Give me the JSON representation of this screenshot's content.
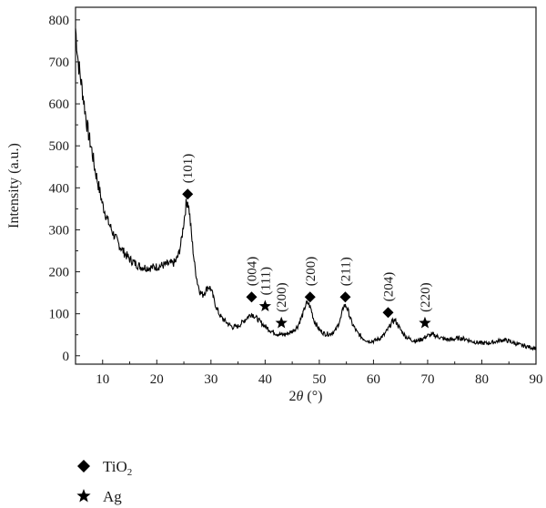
{
  "chart_data": {
    "type": "line",
    "xlabel": "2θ (°)",
    "ylabel": "Intensity (a.u.)",
    "xlim": [
      5,
      90
    ],
    "ylim": [
      -20,
      830
    ],
    "x_ticks": [
      "10",
      "20",
      "30",
      "40",
      "50",
      "60",
      "70",
      "80",
      "90"
    ],
    "y_ticks": [
      "0",
      "100",
      "200",
      "300",
      "400",
      "500",
      "600",
      "700",
      "800"
    ],
    "grid": false,
    "series": [
      {
        "color": "#000000",
        "x": [
          5,
          5.5,
          6,
          6.5,
          7,
          7.5,
          8,
          8.5,
          9,
          9.5,
          10,
          11,
          12,
          13,
          14,
          15,
          16,
          17,
          18,
          19,
          20,
          21,
          22,
          23,
          23.5,
          24,
          24.5,
          25,
          25.4,
          25.7,
          26,
          26.5,
          27,
          27.5,
          28,
          28.5,
          29,
          29.5,
          30,
          30.5,
          31,
          31.5,
          32,
          33,
          34,
          35,
          36,
          37,
          37.5,
          38,
          39,
          40,
          41,
          42,
          43,
          44,
          45,
          46,
          47,
          47.5,
          48,
          48.5,
          49,
          50,
          51,
          52,
          53,
          54,
          54.5,
          55,
          55.5,
          56,
          57,
          58,
          59,
          60,
          61,
          62,
          63,
          63.5,
          64,
          65,
          66,
          67,
          68,
          69,
          70,
          71,
          72,
          73,
          74,
          75,
          76,
          77,
          78,
          79,
          80,
          81,
          82,
          83,
          84,
          85,
          86,
          87,
          88,
          89,
          90
        ],
        "y": [
          780,
          700,
          655,
          610,
          560,
          520,
          490,
          450,
          420,
          390,
          360,
          320,
          290,
          265,
          245,
          230,
          220,
          212,
          210,
          210,
          212,
          215,
          218,
          220,
          225,
          240,
          270,
          320,
          360,
          370,
          345,
          275,
          215,
          175,
          152,
          145,
          155,
          165,
          160,
          135,
          115,
          100,
          90,
          78,
          68,
          70,
          82,
          95,
          100,
          95,
          82,
          70,
          60,
          53,
          50,
          52,
          58,
          70,
          100,
          122,
          125,
          110,
          85,
          62,
          52,
          52,
          60,
          90,
          120,
          118,
          100,
          78,
          55,
          42,
          35,
          35,
          40,
          50,
          70,
          82,
          85,
          62,
          45,
          38,
          35,
          40,
          48,
          50,
          45,
          40,
          38,
          40,
          42,
          40,
          35,
          32,
          30,
          30,
          32,
          35,
          38,
          35,
          30,
          26,
          23,
          20,
          18
        ]
      }
    ],
    "annotations": [
      {
        "label": "(101)",
        "x": 25.7,
        "marker": "diamond",
        "marker_y": 385
      },
      {
        "label": "(004)",
        "x": 37.5,
        "marker": "diamond",
        "marker_y": 140
      },
      {
        "label": "(111)",
        "x": 40.0,
        "marker": "star",
        "marker_y": 118
      },
      {
        "label": "(200)",
        "x": 43.0,
        "marker": "star",
        "marker_y": 78
      },
      {
        "label": "(200)",
        "x": 48.3,
        "marker": "diamond",
        "marker_y": 140
      },
      {
        "label": "(211)",
        "x": 54.8,
        "marker": "diamond",
        "marker_y": 140
      },
      {
        "label": "(204)",
        "x": 62.7,
        "marker": "diamond",
        "marker_y": 103
      },
      {
        "label": "(220)",
        "x": 69.5,
        "marker": "star",
        "marker_y": 78
      }
    ],
    "legend": {
      "position": "bottom-left",
      "entries": [
        {
          "marker": "diamond",
          "label": "TiO",
          "subscript": "2"
        },
        {
          "marker": "star",
          "label": "Ag"
        }
      ]
    }
  }
}
